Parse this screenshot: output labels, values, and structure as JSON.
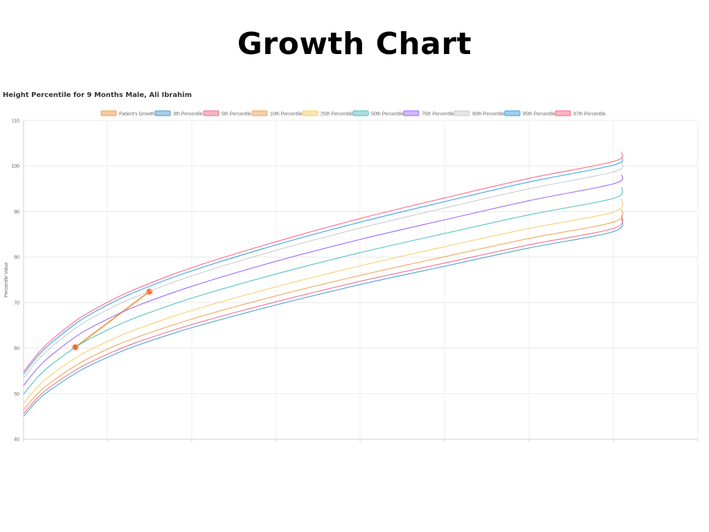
{
  "page": {
    "title": "Growth Chart"
  },
  "chart_data": {
    "type": "line",
    "title": "Height Percentile for 9 Months Male, Ali Ibrahim",
    "xlabel": "",
    "ylabel": "Percentile Value",
    "ylim": [
      40,
      110
    ],
    "yticks": [
      40,
      50,
      60,
      70,
      80,
      90,
      100,
      110
    ],
    "xlim": [
      0,
      24
    ],
    "grid": true,
    "legend_position": "top-center",
    "series": [
      {
        "name": "Patient's Growth",
        "color": "#f0a04b",
        "fill": "#f7c9a1",
        "x": [
          2.1,
          5.1
        ],
        "values": [
          60.2,
          72.4
        ],
        "markers": true
      },
      {
        "name": "3th Percentile",
        "color": "#4a9fd8",
        "fill": "#a7cdea",
        "x": [
          0,
          0.5,
          1,
          2,
          3,
          4,
          6,
          9,
          12,
          15,
          18,
          21,
          21.3
        ],
        "values": [
          45.0,
          48.5,
          51.0,
          55.0,
          58.0,
          60.5,
          64.5,
          69.5,
          74.0,
          78.0,
          82.0,
          85.6,
          88.5
        ]
      },
      {
        "name": "5th Percentile",
        "color": "#ef6f8a",
        "fill": "#f6b4c2",
        "x": [
          0,
          0.5,
          1,
          2,
          3,
          4,
          6,
          9,
          12,
          15,
          18,
          21,
          21.3
        ],
        "values": [
          45.6,
          49.1,
          51.7,
          55.7,
          58.7,
          61.2,
          65.2,
          70.2,
          74.7,
          78.7,
          82.7,
          86.3,
          89.2
        ]
      },
      {
        "name": "10th Percentile",
        "color": "#f3a35a",
        "fill": "#f8cfa4",
        "x": [
          0,
          0.5,
          1,
          2,
          3,
          4,
          6,
          9,
          12,
          15,
          18,
          21,
          21.3
        ],
        "values": [
          46.5,
          50.0,
          52.6,
          56.7,
          59.8,
          62.3,
          66.4,
          71.5,
          76.0,
          80.1,
          84.1,
          87.7,
          90.6
        ]
      },
      {
        "name": "25th Percentile",
        "color": "#f7cf6b",
        "fill": "#fbe5b0",
        "x": [
          0,
          0.5,
          1,
          2,
          3,
          4,
          6,
          9,
          12,
          15,
          18,
          21,
          21.3
        ],
        "values": [
          47.9,
          51.5,
          54.2,
          58.4,
          61.5,
          64.1,
          68.3,
          73.5,
          78.1,
          82.3,
          86.3,
          89.9,
          92.8
        ]
      },
      {
        "name": "50th Percentile",
        "color": "#4bc0c0",
        "fill": "#a9dfdf",
        "x": [
          0,
          0.5,
          1,
          2,
          3,
          4,
          6,
          9,
          12,
          15,
          18,
          21,
          21.3
        ],
        "values": [
          49.9,
          53.6,
          56.4,
          60.8,
          64.0,
          66.7,
          71.0,
          76.3,
          81.0,
          85.2,
          89.3,
          92.9,
          95.4
        ]
      },
      {
        "name": "75th Percentile",
        "color": "#9966ff",
        "fill": "#cfb8ff",
        "x": [
          0,
          0.5,
          1,
          2,
          3,
          4,
          6,
          9,
          12,
          15,
          18,
          21,
          21.3
        ],
        "values": [
          51.8,
          55.6,
          58.5,
          63.1,
          66.4,
          69.2,
          73.6,
          79.1,
          83.9,
          88.2,
          92.4,
          96.1,
          98.1
        ]
      },
      {
        "name": "90th Percentile",
        "color": "#c9cbcf",
        "fill": "#e4e5e7",
        "x": [
          0,
          0.5,
          1,
          2,
          3,
          4,
          6,
          9,
          12,
          15,
          18,
          21,
          21.3
        ],
        "values": [
          53.4,
          57.3,
          60.3,
          65.0,
          68.5,
          71.3,
          75.9,
          81.5,
          86.4,
          90.8,
          95.0,
          98.7,
          100.6
        ]
      },
      {
        "name": "95th Percentile",
        "color": "#36a2eb",
        "fill": "#9ccff3",
        "x": [
          0,
          0.5,
          1,
          2,
          3,
          4,
          6,
          9,
          12,
          15,
          18,
          21,
          21.3
        ],
        "values": [
          54.3,
          58.2,
          61.2,
          66.0,
          69.5,
          72.4,
          77.0,
          82.7,
          87.7,
          92.2,
          96.5,
          100.2,
          102.0
        ]
      },
      {
        "name": "97th Percentile",
        "color": "#ff6384",
        "fill": "#ffb1c1",
        "x": [
          0,
          0.5,
          1,
          2,
          3,
          4,
          6,
          9,
          12,
          15,
          18,
          21,
          21.3
        ],
        "values": [
          54.8,
          58.7,
          61.8,
          66.6,
          70.1,
          73.0,
          77.7,
          83.4,
          88.5,
          93.0,
          97.3,
          101.0,
          103.0
        ]
      }
    ]
  }
}
